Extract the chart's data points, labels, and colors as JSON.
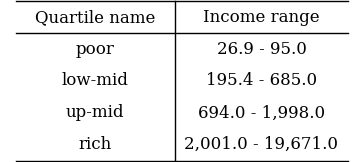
{
  "col1_header": "Quartile name",
  "col2_header": "Income range",
  "rows": [
    [
      "poor",
      "26.9 - 95.0"
    ],
    [
      "low-mid",
      "195.4 - 685.0"
    ],
    [
      "up-mid",
      "694.0 - 1,998.0"
    ],
    [
      "rich",
      "2,001.0 - 19,671.0"
    ]
  ],
  "background_color": "#ffffff",
  "text_color": "#000000",
  "font_size": 12,
  "header_font_size": 12
}
